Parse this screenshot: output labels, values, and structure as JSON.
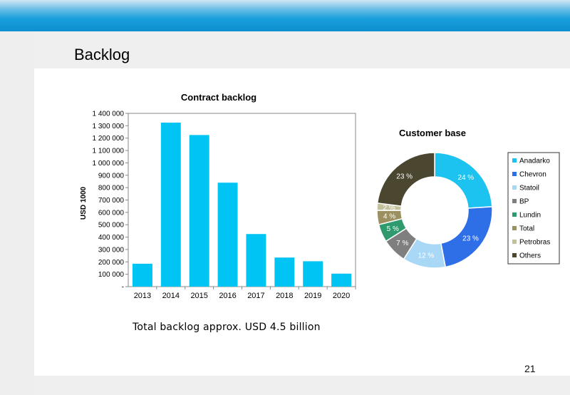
{
  "slide": {
    "title": "Backlog",
    "caption": "Total backlog approx. USD 4.5 billion",
    "page_number": "21"
  },
  "colors": {
    "bar": "#00c4f4",
    "header_blue": "#189fdb"
  },
  "chart_data": [
    {
      "type": "bar",
      "title": "Contract backlog",
      "ylabel": "USD 1000",
      "xlabel": "",
      "categories": [
        "2013",
        "2014",
        "2015",
        "2016",
        "2017",
        "2018",
        "2019",
        "2020"
      ],
      "values": [
        185000,
        1325000,
        1225000,
        840000,
        425000,
        235000,
        205000,
        105000
      ],
      "ylim": [
        0,
        1400000
      ],
      "yticks": [
        0,
        100000,
        200000,
        300000,
        400000,
        500000,
        600000,
        700000,
        800000,
        900000,
        1000000,
        1100000,
        1200000,
        1300000,
        1400000
      ],
      "ytick_labels": [
        "-",
        "100 000",
        "200 000",
        "300 000",
        "400 000",
        "500 000",
        "600 000",
        "700 000",
        "800 000",
        "900 000",
        "1 000 000",
        "1 100 000",
        "1 200 000",
        "1 300 000",
        "1 400 000"
      ],
      "grid": false,
      "legend": "none"
    },
    {
      "type": "pie",
      "subtype": "donut",
      "title": "Customer base",
      "categories": [
        "Anadarko",
        "Chevron",
        "Statoil",
        "BP",
        "Lundin",
        "Total",
        "Petrobras",
        "Others"
      ],
      "values": [
        24,
        23,
        12,
        7,
        5,
        4,
        2,
        23
      ],
      "labels": [
        "24 %",
        "23 %",
        "12 %",
        "7 %",
        "5 %",
        "4 %",
        "2 %",
        "23 %"
      ],
      "colors": [
        "#1cc2f0",
        "#2e6fe8",
        "#a9d8f7",
        "#7f7f7f",
        "#2e9a6e",
        "#9d9060",
        "#c3c09c",
        "#4a4630"
      ],
      "label_colors": [
        "#ffffff",
        "#ffffff",
        "#ffffff",
        "#ffffff",
        "#ffffff",
        "#ffffff",
        "#ffffff",
        "#ffffff"
      ],
      "legend": "right"
    }
  ]
}
